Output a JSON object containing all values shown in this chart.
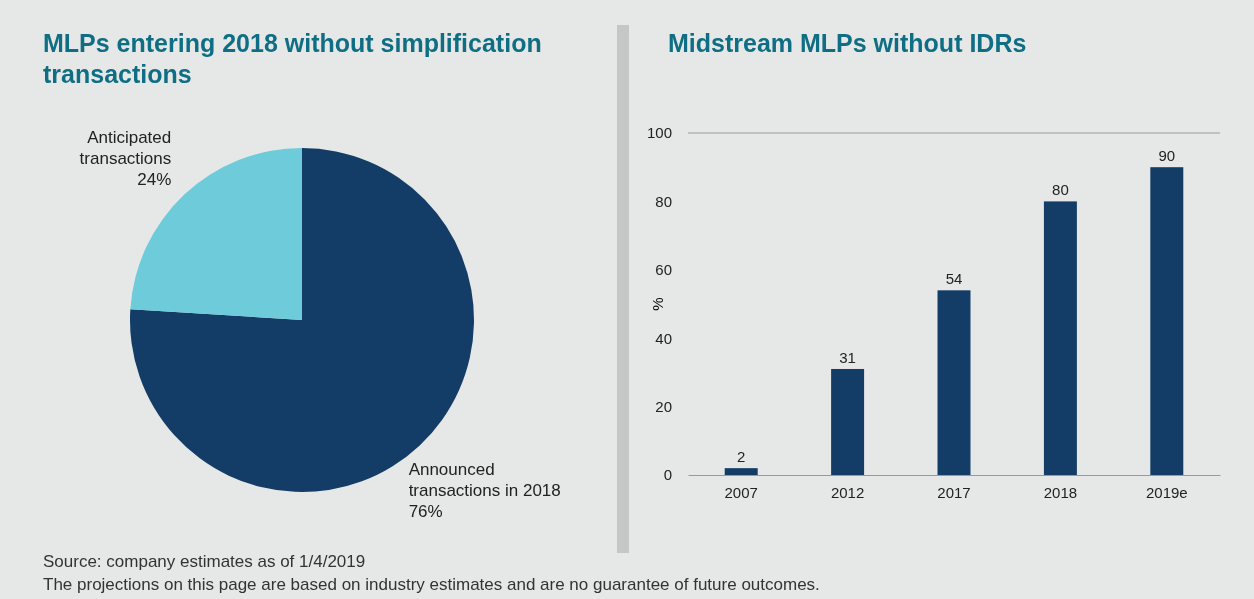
{
  "chart_data": [
    {
      "type": "pie",
      "title": "MLPs entering 2018 without simplification transactions",
      "categories": [
        "Announced transactions in 2018",
        "Anticipated transactions"
      ],
      "values": [
        76,
        24
      ],
      "colors": [
        "#133d66",
        "#6ecbd9"
      ],
      "value_labels": [
        "76%",
        "24%"
      ],
      "annotations": [
        "Source: company estimates as of 1/4/2019",
        "The projections on this page are based on industry estimates and are no guarantee of future outcomes."
      ]
    },
    {
      "type": "bar",
      "title": "Midstream MLPs without IDRs",
      "ylabel": "%",
      "categories": [
        "2007",
        "2012",
        "2017",
        "2018",
        "2019e"
      ],
      "values": [
        2,
        31,
        54,
        80,
        90
      ],
      "color": "#133d66",
      "ylim": [
        0,
        100
      ],
      "yticks": [
        0,
        20,
        40,
        60,
        80,
        100
      ],
      "data_labels": true,
      "ref_lines": [
        {
          "axis": "y",
          "value": 100,
          "color": "#9a9a9a"
        }
      ]
    }
  ]
}
